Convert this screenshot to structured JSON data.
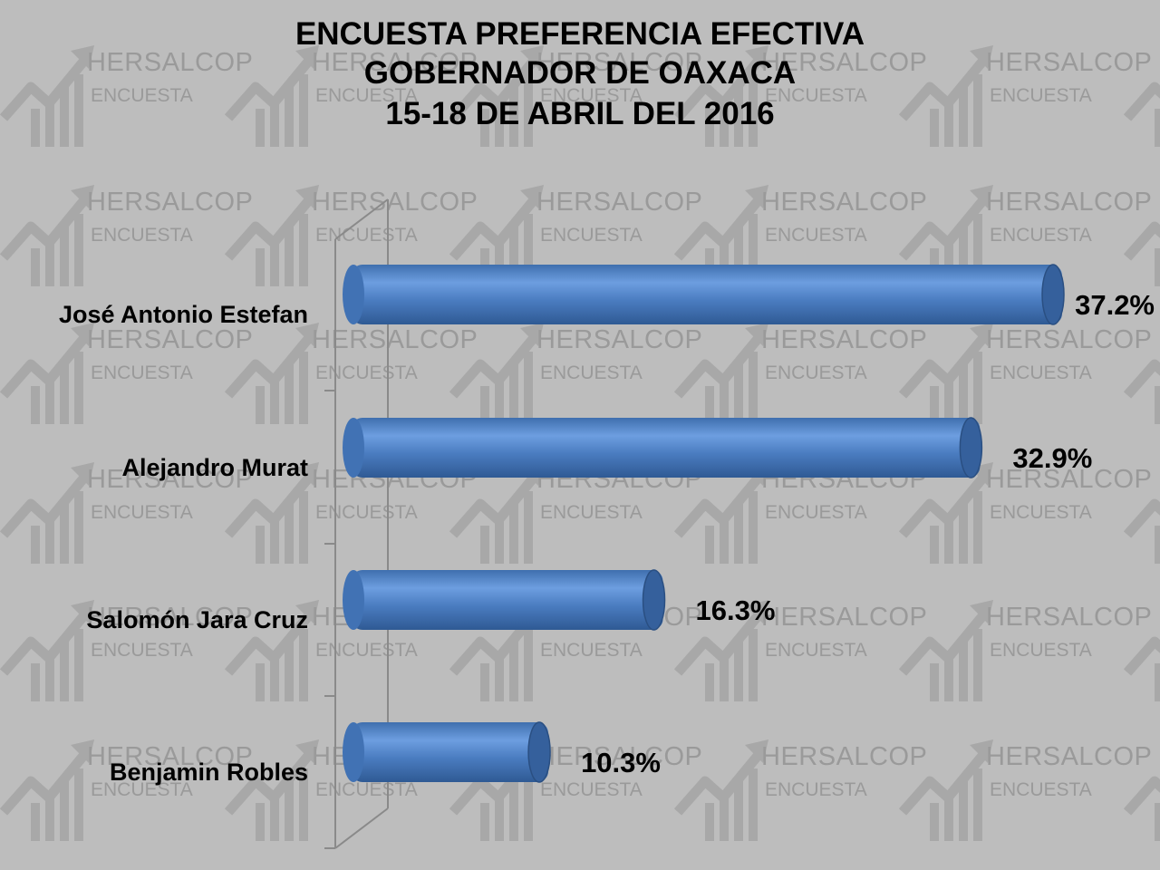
{
  "watermark": {
    "brand": "HERSALCOP",
    "subtitle": "ENCUESTA"
  },
  "colors": {
    "background": "#bdbdbd",
    "bar_main": "#4a7cc0",
    "bar_highlight": "#6d9ee0",
    "bar_shadow": "#2f5a94",
    "watermark": "#9a9a9a"
  },
  "chart_data": {
    "type": "bar",
    "orientation": "horizontal",
    "title": [
      "ENCUESTA PREFERENCIA EFECTIVA",
      "GOBERNADOR DE OAXACA",
      "15-18 DE ABRIL DEL 2016"
    ],
    "categories": [
      "José Antonio Estefan",
      "Alejandro Murat",
      "Salomón Jara Cruz",
      "Benjamin Robles"
    ],
    "values": [
      37.2,
      32.9,
      16.3,
      10.3
    ],
    "value_labels": [
      "37.2%",
      "32.9%",
      "16.3%",
      "10.3%"
    ],
    "xlim": [
      0,
      37.2
    ],
    "grid": false,
    "legend": "none",
    "style": "3d-cylinder"
  }
}
